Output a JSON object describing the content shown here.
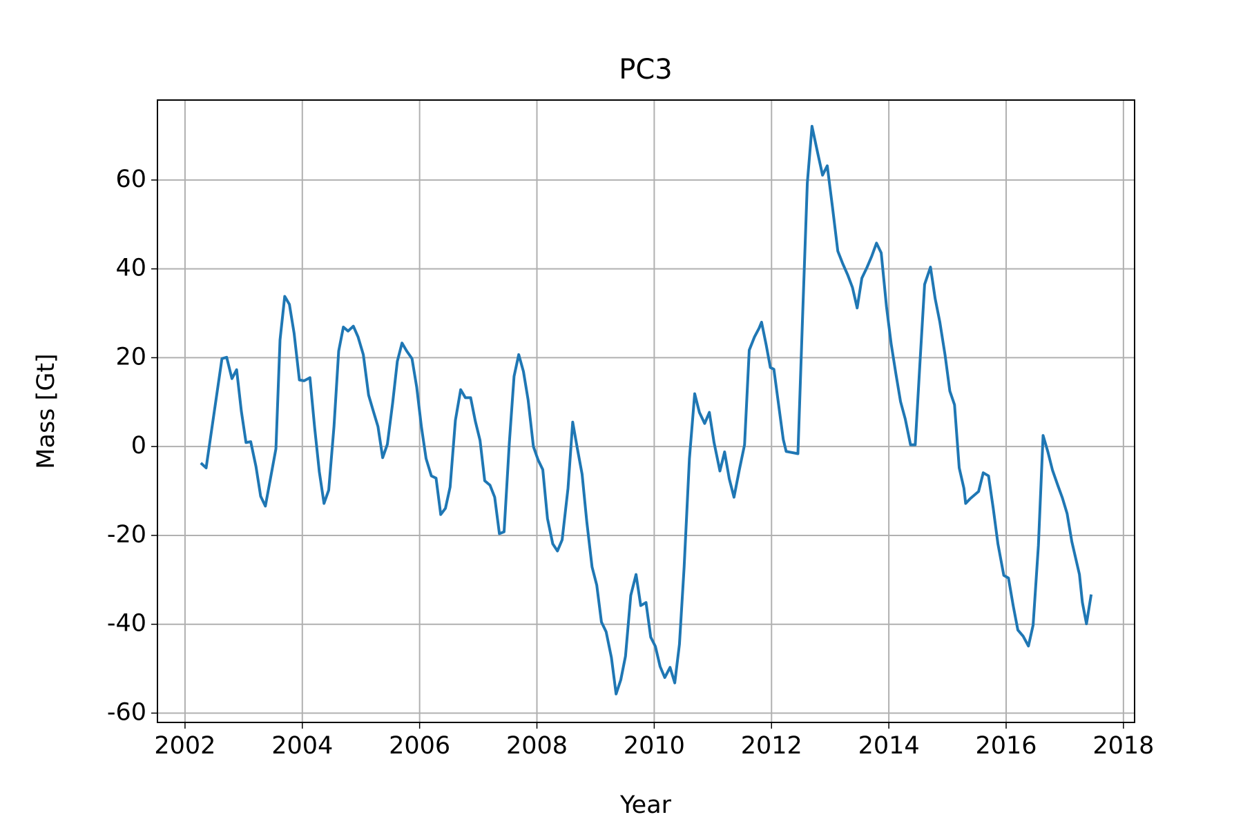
{
  "chart_data": {
    "type": "line",
    "title": "PC3",
    "x_label": "Year",
    "y_label": "Mass [Gt]",
    "xlim": [
      2001.53,
      2018.19
    ],
    "ylim": [
      -62.1,
      78.0
    ],
    "xticks": [
      2002,
      2004,
      2006,
      2008,
      2010,
      2012,
      2014,
      2016,
      2018
    ],
    "yticks": [
      -60,
      -40,
      -20,
      0,
      20,
      40,
      60
    ],
    "grid": true,
    "x": [
      2002.27,
      2002.36,
      2002.63,
      2002.71,
      2002.8,
      2002.88,
      2002.96,
      2003.04,
      2003.12,
      2003.21,
      2003.29,
      2003.37,
      2003.55,
      2003.62,
      2003.7,
      2003.78,
      2003.86,
      2003.95,
      2004.03,
      2004.13,
      2004.21,
      2004.29,
      2004.37,
      2004.45,
      2004.54,
      2004.62,
      2004.7,
      2004.78,
      2004.87,
      2004.95,
      2005.04,
      2005.13,
      2005.21,
      2005.29,
      2005.37,
      2005.45,
      2005.54,
      2005.62,
      2005.7,
      2005.78,
      2005.87,
      2005.95,
      2006.03,
      2006.11,
      2006.2,
      2006.28,
      2006.36,
      2006.44,
      2006.52,
      2006.61,
      2006.7,
      2006.78,
      2006.87,
      2006.95,
      2007.03,
      2007.11,
      2007.2,
      2007.28,
      2007.36,
      2007.44,
      2007.53,
      2007.61,
      2007.69,
      2007.77,
      2007.85,
      2007.94,
      2008.02,
      2008.1,
      2008.18,
      2008.27,
      2008.35,
      2008.43,
      2008.53,
      2008.61,
      2008.69,
      2008.77,
      2008.85,
      2008.94,
      2009.02,
      2009.1,
      2009.18,
      2009.27,
      2009.35,
      2009.43,
      2009.51,
      2009.6,
      2009.69,
      2009.77,
      2009.86,
      2009.94,
      2010.02,
      2010.1,
      2010.18,
      2010.27,
      2010.35,
      2010.43,
      2010.51,
      2010.6,
      2010.69,
      2010.77,
      2010.86,
      2010.94,
      2011.02,
      2011.12,
      2011.2,
      2011.28,
      2011.36,
      2011.45,
      2011.54,
      2011.62,
      2011.71,
      2011.79,
      2011.83,
      2011.91,
      2011.98,
      2012.04,
      2012.13,
      2012.2,
      2012.25,
      2012.45,
      2012.53,
      2012.61,
      2012.69,
      2012.79,
      2012.87,
      2012.95,
      2013.04,
      2013.13,
      2013.21,
      2013.3,
      2013.38,
      2013.46,
      2013.54,
      2013.63,
      2013.71,
      2013.79,
      2013.87,
      2013.96,
      2014.04,
      2014.12,
      2014.2,
      2014.28,
      2014.37,
      2014.45,
      2014.53,
      2014.61,
      2014.71,
      2014.79,
      2014.87,
      2014.96,
      2015.04,
      2015.12,
      2015.2,
      2015.28,
      2015.31,
      2015.39,
      2015.53,
      2015.61,
      2015.7,
      2015.78,
      2015.86,
      2015.96,
      2016.04,
      2016.12,
      2016.2,
      2016.29,
      2016.38,
      2016.46,
      2016.55,
      2016.63,
      2016.71,
      2016.79,
      2016.88,
      2016.96,
      2017.04,
      2017.12,
      2017.25,
      2017.3,
      2017.37,
      2017.45
    ],
    "series": [
      {
        "name": "PC3",
        "color": "#1f77b4",
        "values": [
          -3.7,
          -4.8,
          19.8,
          20.1,
          15.3,
          17.3,
          8.0,
          0.9,
          1.1,
          -4.5,
          -11.2,
          -13.4,
          -0.5,
          24.0,
          33.8,
          32.0,
          25.5,
          15.0,
          14.8,
          15.5,
          4.3,
          -5.7,
          -12.8,
          -9.8,
          4.5,
          21.5,
          26.9,
          26.0,
          27.1,
          24.7,
          20.7,
          11.6,
          8.0,
          4.5,
          -2.5,
          0.5,
          9.8,
          19.2,
          23.3,
          21.5,
          19.8,
          13.4,
          4.5,
          -2.7,
          -6.6,
          -7.1,
          -15.3,
          -13.9,
          -9.1,
          5.9,
          12.8,
          11.0,
          11.0,
          5.7,
          1.4,
          -7.7,
          -8.7,
          -11.4,
          -19.6,
          -19.2,
          0.9,
          15.8,
          20.7,
          16.9,
          10.5,
          0,
          -3.0,
          -5.2,
          -16.2,
          -21.9,
          -23.5,
          -21.0,
          -9.4,
          5.5,
          -0.5,
          -6.2,
          -16.9,
          -27.1,
          -31.2,
          -39.5,
          -41.7,
          -47.5,
          -55.7,
          -52.5,
          -47.2,
          -33.5,
          -28.8,
          -35.8,
          -35.1,
          -42.9,
          -45.0,
          -49.5,
          -52.0,
          -49.7,
          -53.2,
          -44.5,
          -27.1,
          -2.7,
          11.9,
          7.7,
          5.2,
          7.7,
          0.9,
          -5.5,
          -1.2,
          -7.3,
          -11.4,
          -5.3,
          0.4,
          21.7,
          24.7,
          26.7,
          28.0,
          22.8,
          17.8,
          17.4,
          8.5,
          1.6,
          -1.1,
          -1.6,
          29.4,
          59.3,
          72.1,
          65.9,
          61.1,
          63.2,
          53.8,
          44.0,
          41.3,
          38.6,
          35.8,
          31.2,
          37.9,
          40.4,
          42.9,
          45.8,
          43.6,
          31.5,
          23.1,
          16.4,
          10.1,
          6.2,
          0.4,
          0.4,
          18.7,
          36.5,
          40.4,
          33.3,
          28.0,
          20.5,
          12.5,
          9.4,
          -4.8,
          -9.4,
          -12.8,
          -11.7,
          -10.1,
          -5.9,
          -6.6,
          -13.9,
          -21.9,
          -29.0,
          -29.6,
          -35.8,
          -41.3,
          -42.7,
          -44.9,
          -40.2,
          -22.3,
          2.5,
          -1.1,
          -5.3,
          -8.7,
          -11.6,
          -15.1,
          -21.4,
          -28.8,
          -35.1,
          -39.9,
          -33.3
        ]
      }
    ]
  }
}
